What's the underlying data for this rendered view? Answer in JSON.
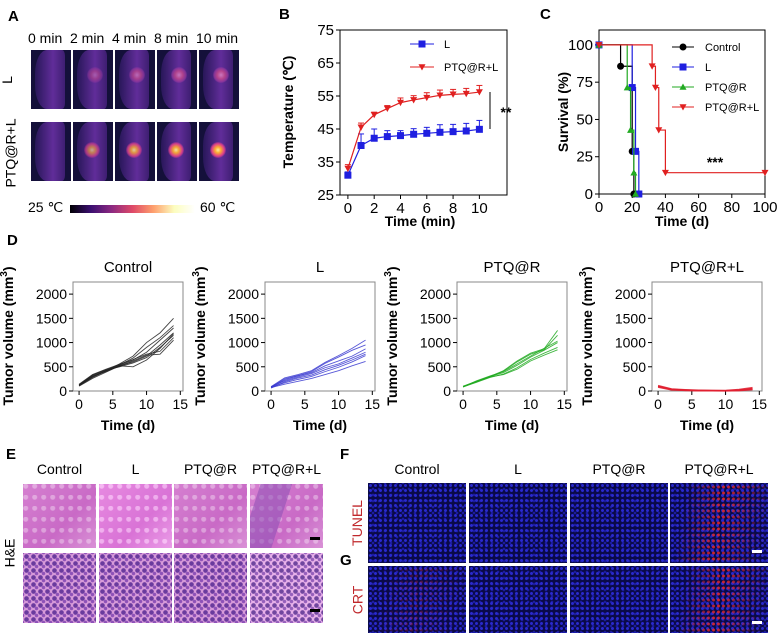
{
  "panels": {
    "A": "A",
    "B": "B",
    "C": "C",
    "D": "D",
    "E": "E",
    "F": "F",
    "G": "G"
  },
  "panel_a": {
    "times": [
      "0 min",
      "2 min",
      "4 min",
      "8 min",
      "10 min"
    ],
    "rows": [
      "L",
      "PTQ@R+L"
    ],
    "colorbar_min": "25 ℃",
    "colorbar_max": "60 ℃",
    "colormap": [
      "#000004",
      "#3b0f70",
      "#8c2981",
      "#de4968",
      "#fe9f6d",
      "#fcfdbf",
      "#ffffff"
    ]
  },
  "panel_e": {
    "columns": [
      "Control",
      "L",
      "PTQ@R",
      "PTQ@R+L"
    ],
    "row_label": "H&E"
  },
  "panel_f": {
    "columns": [
      "Control",
      "L",
      "PTQ@R",
      "PTQ@R+L"
    ],
    "row_label": "TUNEL"
  },
  "panel_g": {
    "row_label": "CRT"
  },
  "chart_data": [
    {
      "id": "B",
      "type": "line",
      "xlabel": "Time (min)",
      "ylabel": "Temperature (℃)",
      "xlim": [
        0,
        10
      ],
      "ylim": [
        25,
        75
      ],
      "xticks": [
        0,
        2,
        4,
        6,
        8,
        10
      ],
      "yticks": [
        25,
        35,
        45,
        55,
        65,
        75
      ],
      "legend": "top-right",
      "annotation": "**",
      "x": [
        0,
        1,
        2,
        3,
        4,
        5,
        6,
        7,
        8,
        9,
        10
      ],
      "series": [
        {
          "name": "L",
          "color": "#1f1fe0",
          "marker": "square",
          "values": [
            31,
            40,
            42.2,
            42.7,
            43,
            43.4,
            43.7,
            44,
            44.2,
            44.4,
            44.9
          ],
          "errors": [
            1,
            3.5,
            2.8,
            1.8,
            1.5,
            1.7,
            1.8,
            2.3,
            2.2,
            2.3,
            2.7
          ]
        },
        {
          "name": "PTQ@R+L",
          "color": "#e02020",
          "marker": "triangle-down",
          "values": [
            33,
            45.5,
            49.3,
            51.2,
            53,
            53.8,
            54.5,
            55.2,
            55.5,
            55.7,
            56.2
          ],
          "errors": [
            1.2,
            1.3,
            0.8,
            0.9,
            1.4,
            1.3,
            1.5,
            1.6,
            1.5,
            1.6,
            2
          ]
        }
      ]
    },
    {
      "id": "C",
      "type": "line",
      "subtype": "kaplan-meier",
      "xlabel": "Time (d)",
      "ylabel": "Survival (%)",
      "xlim": [
        0,
        100
      ],
      "ylim": [
        0,
        100
      ],
      "xticks": [
        0,
        20,
        40,
        60,
        80,
        100
      ],
      "yticks": [
        0,
        25,
        50,
        75,
        100
      ],
      "legend": "top-right",
      "annotation": "***",
      "series": [
        {
          "name": "Control",
          "color": "#000000",
          "marker": "circle",
          "x": [
            0,
            13,
            20,
            21
          ],
          "values": [
            100,
            85.7,
            28.6,
            0
          ]
        },
        {
          "name": "L",
          "color": "#1f1fe0",
          "marker": "square",
          "x": [
            0,
            20,
            22,
            24
          ],
          "values": [
            100,
            71.4,
            28.6,
            0
          ]
        },
        {
          "name": "PTQ@R",
          "color": "#22aa22",
          "marker": "triangle-up",
          "x": [
            0,
            17,
            19,
            21,
            22
          ],
          "values": [
            100,
            71.4,
            42.9,
            14.3,
            0
          ]
        },
        {
          "name": "PTQ@R+L",
          "color": "#e02020",
          "marker": "triangle-down",
          "x": [
            0,
            32,
            34,
            36,
            40,
            100
          ],
          "values": [
            100,
            85.7,
            71.4,
            42.9,
            14.3,
            14.3
          ]
        }
      ]
    },
    {
      "id": "D1",
      "type": "line",
      "title": "Control",
      "color": "#222222",
      "xlabel": "Time (d)",
      "ylabel": "Tumor volume (mm",
      "ylabel_sup": "3",
      "ylabel_end": ")",
      "xlim": [
        0,
        15
      ],
      "ylim": [
        0,
        2000
      ],
      "xticks": [
        0,
        5,
        10,
        15
      ],
      "yticks": [
        0,
        500,
        1000,
        1500,
        2000
      ],
      "x": [
        0,
        2,
        4,
        6,
        8,
        10,
        12,
        14
      ],
      "series": [
        {
          "values": [
            120,
            300,
            420,
            560,
            720,
            1000,
            1200,
            1500
          ]
        },
        {
          "values": [
            110,
            280,
            410,
            540,
            680,
            900,
            1100,
            1350
          ]
        },
        {
          "values": [
            130,
            330,
            440,
            530,
            640,
            800,
            1050,
            1300
          ]
        },
        {
          "values": [
            100,
            260,
            390,
            520,
            600,
            720,
            950,
            1200
          ]
        },
        {
          "values": [
            120,
            320,
            430,
            500,
            580,
            690,
            900,
            1150
          ]
        },
        {
          "values": [
            140,
            340,
            450,
            550,
            650,
            760,
            820,
            1100
          ]
        },
        {
          "values": [
            110,
            290,
            420,
            510,
            620,
            740,
            760,
            1050
          ]
        },
        {
          "values": [
            125,
            310,
            400,
            520,
            500,
            640,
            880,
            1180
          ]
        }
      ]
    },
    {
      "id": "D2",
      "type": "line",
      "title": "L",
      "color": "#3a3ad0",
      "xlabel": "Time (d)",
      "ylabel": "Tumor volume (mm",
      "ylabel_sup": "3",
      "ylabel_end": ")",
      "xlim": [
        0,
        15
      ],
      "ylim": [
        0,
        2000
      ],
      "xticks": [
        0,
        5,
        10,
        15
      ],
      "yticks": [
        0,
        500,
        1000,
        1500,
        2000
      ],
      "x": [
        0,
        2,
        4,
        6,
        8,
        10,
        12,
        14
      ],
      "series": [
        {
          "values": [
            90,
            270,
            340,
            420,
            590,
            730,
            880,
            1050
          ]
        },
        {
          "values": [
            80,
            250,
            320,
            400,
            570,
            700,
            840,
            950
          ]
        },
        {
          "values": [
            70,
            230,
            310,
            380,
            520,
            620,
            720,
            870
          ]
        },
        {
          "values": [
            90,
            210,
            290,
            360,
            480,
            560,
            680,
            800
          ]
        },
        {
          "values": [
            60,
            190,
            270,
            330,
            440,
            530,
            640,
            760
          ]
        },
        {
          "values": [
            80,
            170,
            240,
            300,
            400,
            490,
            600,
            730
          ]
        },
        {
          "values": [
            70,
            140,
            200,
            260,
            340,
            420,
            520,
            610
          ]
        }
      ]
    },
    {
      "id": "D3",
      "type": "line",
      "title": "PTQ@R",
      "color": "#22aa22",
      "xlabel": "Time (d)",
      "ylabel": "Tumor volume (mm",
      "ylabel_sup": "3",
      "ylabel_end": ")",
      "xlim": [
        0,
        15
      ],
      "ylim": [
        0,
        2000
      ],
      "xticks": [
        0,
        5,
        10,
        15
      ],
      "yticks": [
        0,
        500,
        1000,
        1500,
        2000
      ],
      "x": [
        0,
        2,
        4,
        6,
        8,
        10,
        12,
        14
      ],
      "series": [
        {
          "values": [
            90,
            200,
            300,
            420,
            620,
            780,
            870,
            1250
          ]
        },
        {
          "values": [
            80,
            190,
            290,
            410,
            600,
            760,
            850,
            1150
          ]
        },
        {
          "values": [
            90,
            210,
            310,
            400,
            560,
            720,
            880,
            1030
          ]
        },
        {
          "values": [
            100,
            200,
            300,
            380,
            530,
            700,
            840,
            1000
          ]
        },
        {
          "values": [
            85,
            180,
            280,
            350,
            480,
            650,
            780,
            900
          ]
        },
        {
          "values": [
            95,
            190,
            290,
            340,
            450,
            620,
            740,
            850
          ]
        }
      ]
    },
    {
      "id": "D4",
      "type": "line",
      "title": "PTQ@R+L",
      "color": "#e02030",
      "xlabel": "Time (d)",
      "ylabel": "Tumor volume (mm",
      "ylabel_sup": "3",
      "ylabel_end": ")",
      "xlim": [
        0,
        15
      ],
      "ylim": [
        0,
        2000
      ],
      "xticks": [
        0,
        5,
        10,
        15
      ],
      "yticks": [
        0,
        500,
        1000,
        1500,
        2000
      ],
      "x": [
        0,
        2,
        4,
        6,
        8,
        10,
        12,
        14
      ],
      "series": [
        {
          "values": [
            110,
            40,
            25,
            15,
            10,
            10,
            30,
            70
          ]
        },
        {
          "values": [
            90,
            30,
            20,
            10,
            5,
            5,
            20,
            50
          ]
        },
        {
          "values": [
            100,
            35,
            15,
            10,
            8,
            5,
            15,
            40
          ]
        },
        {
          "values": [
            80,
            25,
            15,
            8,
            5,
            3,
            10,
            30
          ]
        }
      ]
    }
  ]
}
